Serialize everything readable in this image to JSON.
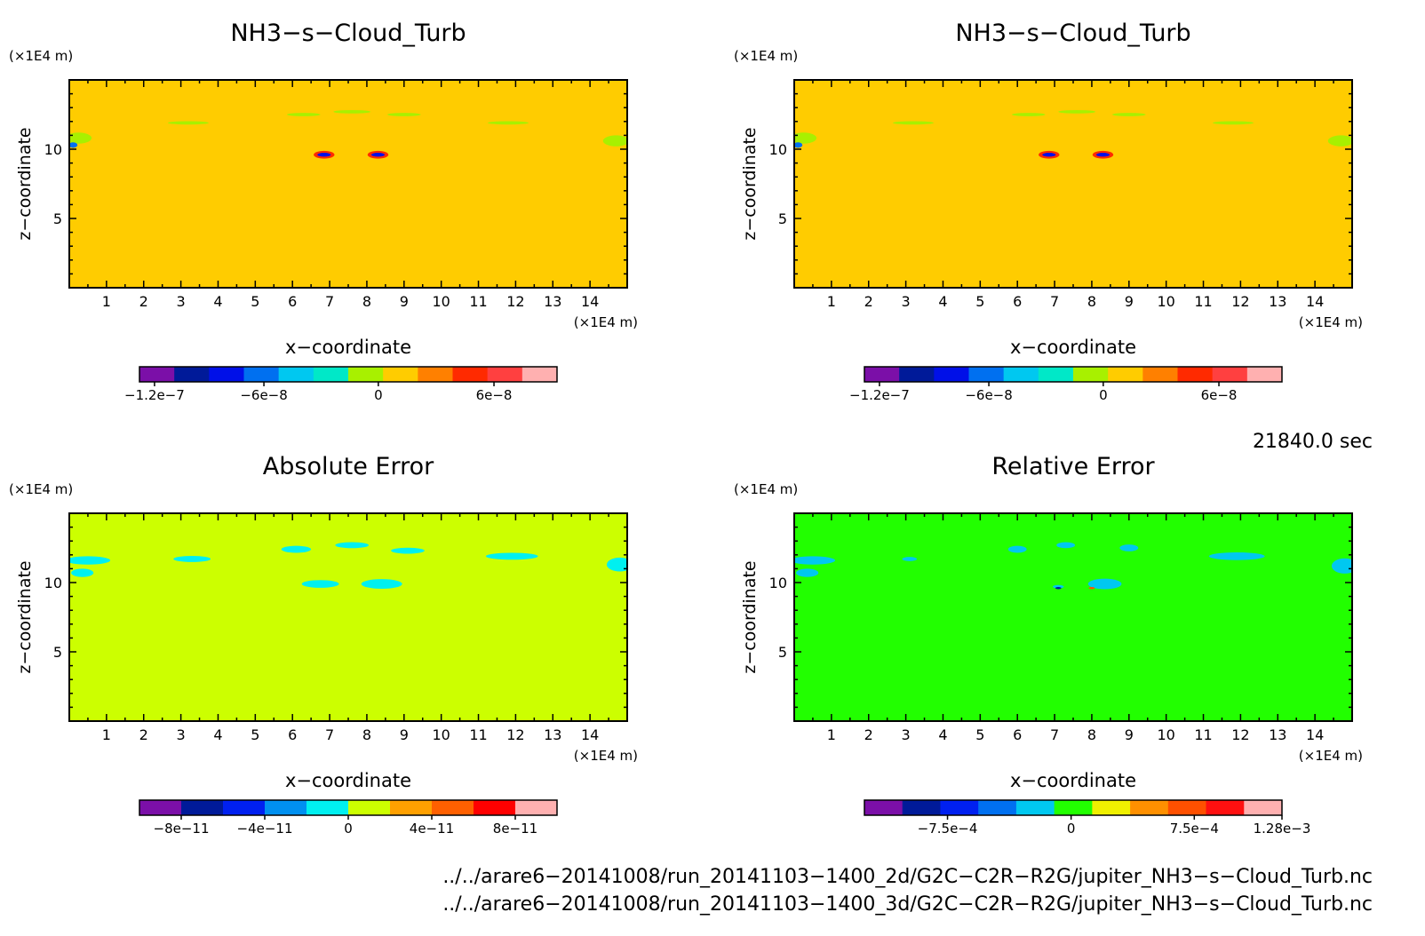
{
  "chart_data": [
    {
      "type": "heatmap",
      "title": "NH3−s−Cloud_Turb",
      "xlabel": "x−coordinate",
      "ylabel": "z−coordinate",
      "x_unit": "(×1E4 m)",
      "y_unit": "(×1E4 m)",
      "xlim": [
        0,
        15
      ],
      "ylim": [
        0,
        15
      ],
      "xticks": [
        1,
        2,
        3,
        4,
        5,
        6,
        7,
        8,
        9,
        10,
        11,
        12,
        13,
        14
      ],
      "yticks": [
        5,
        10
      ],
      "field_color": "#ffcc00",
      "colorbar": {
        "colors": [
          "#7b0fa8",
          "#001a99",
          "#0010e8",
          "#0070f0",
          "#00c8f0",
          "#00e8c8",
          "#a8f000",
          "#ffcc00",
          "#ff8000",
          "#ff2a00",
          "#ff4040",
          "#ffb0b0"
        ],
        "tick_labels": [
          "−1.2e−7",
          "−6e−8",
          "0",
          "6e−8"
        ],
        "tick_positions": [
          0.036,
          0.298,
          0.572,
          0.849
        ]
      }
    },
    {
      "type": "heatmap",
      "title": "NH3−s−Cloud_Turb",
      "xlabel": "x−coordinate",
      "ylabel": "z−coordinate",
      "x_unit": "(×1E4 m)",
      "y_unit": "(×1E4 m)",
      "xlim": [
        0,
        15
      ],
      "ylim": [
        0,
        15
      ],
      "xticks": [
        1,
        2,
        3,
        4,
        5,
        6,
        7,
        8,
        9,
        10,
        11,
        12,
        13,
        14
      ],
      "yticks": [
        5,
        10
      ],
      "field_color": "#ffcc00",
      "colorbar": {
        "colors": [
          "#7b0fa8",
          "#001a99",
          "#0010e8",
          "#0070f0",
          "#00c8f0",
          "#00e8c8",
          "#a8f000",
          "#ffcc00",
          "#ff8000",
          "#ff2a00",
          "#ff4040",
          "#ffb0b0"
        ],
        "tick_labels": [
          "−1.2e−7",
          "−6e−8",
          "0",
          "6e−8"
        ],
        "tick_positions": [
          0.036,
          0.298,
          0.572,
          0.849
        ]
      }
    },
    {
      "type": "heatmap",
      "title": "Absolute Error",
      "xlabel": "x−coordinate",
      "ylabel": "z−coordinate",
      "x_unit": "(×1E4 m)",
      "y_unit": "(×1E4 m)",
      "xlim": [
        0,
        15
      ],
      "ylim": [
        0,
        15
      ],
      "xticks": [
        1,
        2,
        3,
        4,
        5,
        6,
        7,
        8,
        9,
        10,
        11,
        12,
        13,
        14
      ],
      "yticks": [
        5,
        10
      ],
      "field_color": "#ccff00",
      "colorbar": {
        "colors": [
          "#7b0fa8",
          "#001a99",
          "#0020f0",
          "#0090f0",
          "#00f0f0",
          "#ccff00",
          "#ffa000",
          "#ff6000",
          "#ff0000",
          "#ffb0b0"
        ],
        "tick_labels": [
          "−8e−11",
          "−4e−11",
          "0",
          "4e−11",
          "8e−11"
        ],
        "tick_positions": [
          0.1,
          0.3,
          0.5,
          0.7,
          0.9
        ]
      }
    },
    {
      "type": "heatmap",
      "title": "Relative Error",
      "xlabel": "x−coordinate",
      "ylabel": "z−coordinate",
      "x_unit": "(×1E4 m)",
      "y_unit": "(×1E4 m)",
      "xlim": [
        0,
        15
      ],
      "ylim": [
        0,
        15
      ],
      "xticks": [
        1,
        2,
        3,
        4,
        5,
        6,
        7,
        8,
        9,
        10,
        11,
        12,
        13,
        14
      ],
      "yticks": [
        5,
        10
      ],
      "field_color": "#22ff00",
      "colorbar": {
        "colors": [
          "#7b0fa8",
          "#001a99",
          "#0020f0",
          "#0070f0",
          "#00c8f0",
          "#22ff00",
          "#f0f000",
          "#ff9000",
          "#ff5000",
          "#ff1010",
          "#ffb0b0"
        ],
        "tick_labels": [
          "−7.5e−4",
          "0",
          "7.5e−4",
          "1.28e−3"
        ],
        "tick_positions": [
          0.199,
          0.495,
          0.79,
          1.0
        ]
      }
    }
  ],
  "timestamp": "21840.0 sec",
  "file_paths": [
    "../../arare6−20141008/run_20141103−1400_2d/G2C−C2R−R2G/jupiter_NH3−s−Cloud_Turb.nc",
    "../../arare6−20141008/run_20141103−1400_3d/G2C−C2R−R2G/jupiter_NH3−s−Cloud_Turb.nc"
  ]
}
